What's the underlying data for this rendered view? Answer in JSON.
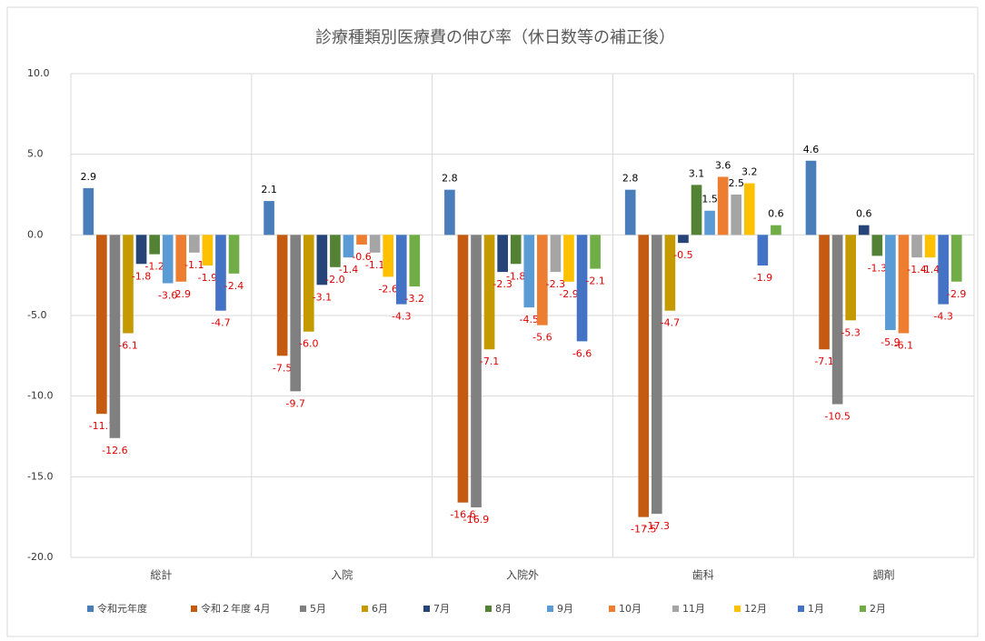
{
  "chart_data": {
    "type": "bar",
    "title": "診療種類別医療費の伸び率（休日数等の補正後）",
    "categories": [
      "総計",
      "入院",
      "入院外",
      "歯科",
      "調剤"
    ],
    "ylim": [
      -20,
      10
    ],
    "yticks": [
      {
        "value": -20,
        "label": "-20.0"
      },
      {
        "value": -15,
        "label": "-15.0"
      },
      {
        "value": -10,
        "label": "-10.0"
      },
      {
        "value": -5,
        "label": "-5.0"
      },
      {
        "value": 0,
        "label": "0.0"
      },
      {
        "value": 5,
        "label": "5.0"
      },
      {
        "value": 10,
        "label": "10.0"
      }
    ],
    "grid": true,
    "legend": "bottom",
    "series": [
      {
        "name": "令和元年度",
        "color": "#4a7ebb",
        "values": [
          2.9,
          2.1,
          2.8,
          2.8,
          4.6
        ],
        "value_labels": [
          "2.9",
          "2.1",
          "2.8",
          "2.8",
          "4.6"
        ]
      },
      {
        "name": "令和２年度 4月",
        "color": "#c55a11",
        "values": [
          -11.1,
          -7.5,
          -16.6,
          -17.5,
          -7.1
        ],
        "value_labels": [
          "-11.1",
          "-7.5",
          "-16.6",
          "-17.5",
          "-7.1"
        ]
      },
      {
        "name": "5月",
        "color": "#808080",
        "values": [
          -12.6,
          -9.7,
          -16.9,
          -17.3,
          -10.5
        ],
        "value_labels": [
          "-12.6",
          "-9.7",
          "-16.9",
          "-17.3",
          "-10.5"
        ]
      },
      {
        "name": "6月",
        "color": "#c49a00",
        "values": [
          -6.1,
          -6.0,
          -7.1,
          -4.7,
          -5.3
        ],
        "value_labels": [
          "-6.1",
          "-6.0",
          "-7.1",
          "-4.7",
          "-5.3"
        ]
      },
      {
        "name": "7月",
        "color": "#264478",
        "values": [
          -1.8,
          -3.1,
          -2.3,
          -0.5,
          0.6
        ],
        "value_labels": [
          "-1.8",
          "-3.1",
          "-2.3",
          "-0.5",
          "0.6"
        ]
      },
      {
        "name": "8月",
        "color": "#548235",
        "values": [
          -1.2,
          -2.0,
          -1.8,
          3.1,
          -1.3
        ],
        "value_labels": [
          "-1.2",
          "-2.0",
          "-1.8",
          "3.1",
          "-1.3"
        ]
      },
      {
        "name": "9月",
        "color": "#5b9bd5",
        "values": [
          -3.0,
          -1.4,
          -4.5,
          1.5,
          -5.9
        ],
        "value_labels": [
          "-3.0",
          "-1.4",
          "-4.5",
          "1.5",
          "-5.9"
        ]
      },
      {
        "name": "10月",
        "color": "#ed7d31",
        "values": [
          -2.9,
          -0.6,
          -5.6,
          3.6,
          -6.1
        ],
        "value_labels": [
          "-2.9",
          "-0.6",
          "-5.6",
          "3.6",
          "-6.1"
        ]
      },
      {
        "name": "11月",
        "color": "#a5a5a5",
        "values": [
          -1.1,
          -1.1,
          -2.3,
          2.5,
          -1.4
        ],
        "value_labels": [
          "-1.1",
          "-1.1",
          "-2.3",
          "2.5",
          "-1.4"
        ]
      },
      {
        "name": "12月",
        "color": "#ffc000",
        "values": [
          -1.9,
          -2.6,
          -2.9,
          3.2,
          -1.4
        ],
        "value_labels": [
          "-1.9",
          "-2.6",
          "-2.9",
          "3.2",
          "-1.4"
        ]
      },
      {
        "name": "1月",
        "color": "#4472c4",
        "values": [
          -4.7,
          -4.3,
          -6.6,
          -1.9,
          -4.3
        ],
        "value_labels": [
          "-4.7",
          "-4.3",
          "-6.6",
          "-1.9",
          "-4.3"
        ]
      },
      {
        "name": "2月",
        "color": "#70ad47",
        "values": [
          -2.4,
          -3.2,
          -2.1,
          0.6,
          -2.9
        ],
        "value_labels": [
          "-2.4",
          "-3.2",
          "-2.1",
          "0.6",
          "-2.9"
        ]
      }
    ]
  }
}
